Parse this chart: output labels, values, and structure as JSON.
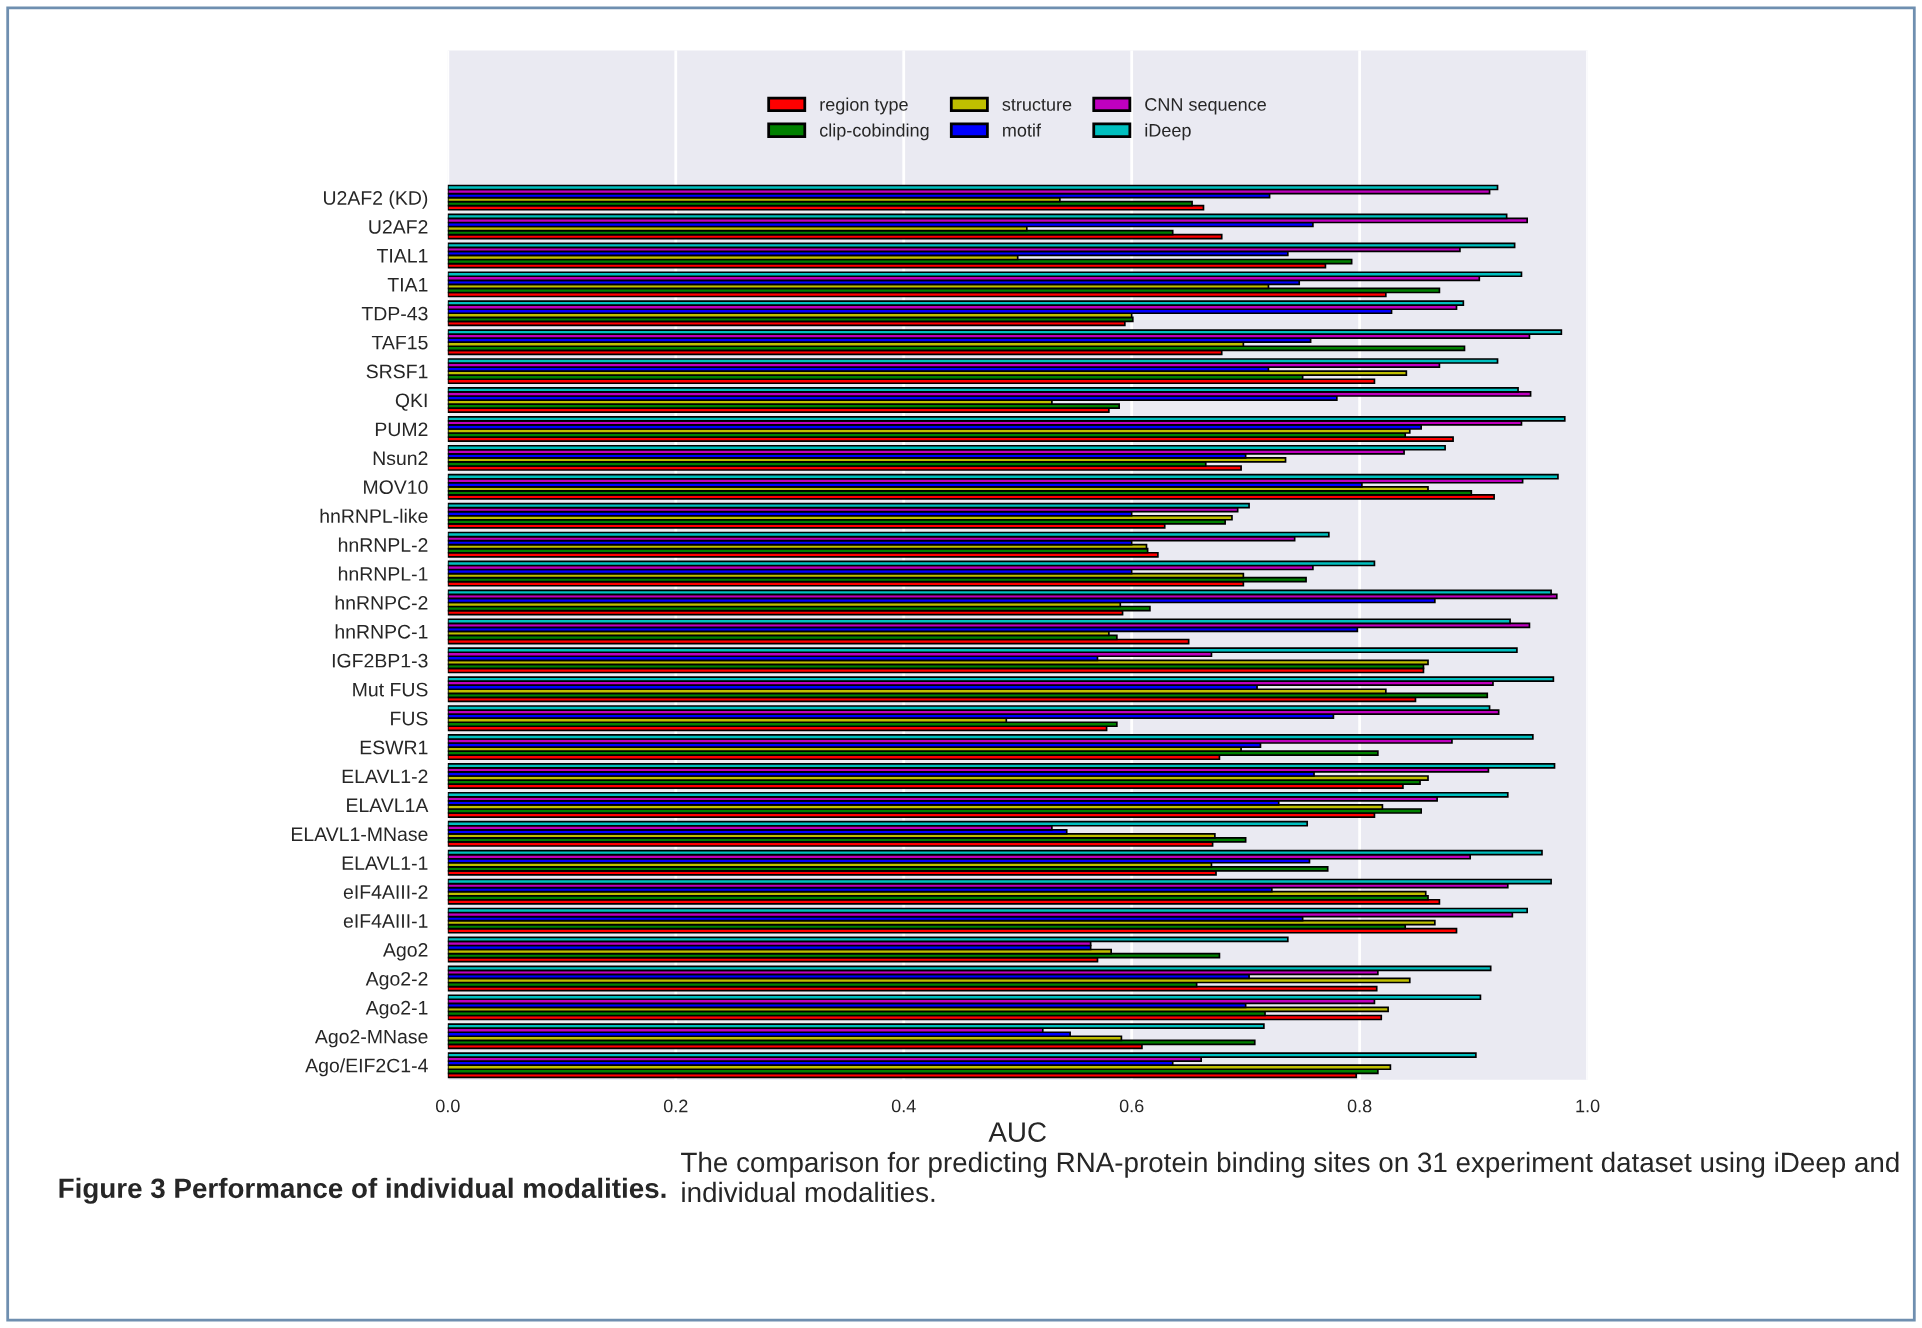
{
  "chart_data": {
    "type": "bar",
    "orientation": "horizontal",
    "xlabel": "AUC",
    "categories": [
      "U2AF2 (KD)",
      "U2AF2",
      "TIAL1",
      "TIA1",
      "TDP-43",
      "TAF15",
      "SRSF1",
      "QKI",
      "PUM2",
      "Nsun2",
      "MOV10",
      "hnRNPL-like",
      "hnRNPL-2",
      "hnRNPL-1",
      "hnRNPC-2",
      "hnRNPC-1",
      "IGF2BP1-3",
      "Mut FUS",
      "FUS",
      "ESWR1",
      "ELAVL1-2",
      "ELAVL1A",
      "ELAVL1-MNase",
      "ELAVL1-1",
      "eIF4AIII-2",
      "eIF4AIII-1",
      "Ago2",
      "Ago2-2",
      "Ago2-1",
      "Ago2-MNase",
      "Ago/EIF2C1-4"
    ],
    "series": [
      {
        "name": "region type",
        "color": "#ff0000",
        "values": [
          0.663,
          0.679,
          0.77,
          0.823,
          0.594,
          0.679,
          0.813,
          0.58,
          0.882,
          0.696,
          0.918,
          0.629,
          0.623,
          0.698,
          0.592,
          0.65,
          0.856,
          0.849,
          0.578,
          0.677,
          0.838,
          0.813,
          0.671,
          0.674,
          0.87,
          0.885,
          0.57,
          0.815,
          0.819,
          0.609,
          0.797
        ]
      },
      {
        "name": "clip-cobinding",
        "color": "#008000",
        "values": [
          0.653,
          0.636,
          0.793,
          0.87,
          0.601,
          0.892,
          0.75,
          0.589,
          0.84,
          0.665,
          0.898,
          0.682,
          0.614,
          0.753,
          0.616,
          0.587,
          0.856,
          0.912,
          0.587,
          0.816,
          0.853,
          0.854,
          0.7,
          0.772,
          0.86,
          0.84,
          0.677,
          0.657,
          0.717,
          0.708,
          0.816
        ]
      },
      {
        "name": "structure",
        "color": "#bfbf00",
        "values": [
          0.537,
          0.508,
          0.5,
          0.72,
          0.6,
          0.698,
          0.841,
          0.53,
          0.844,
          0.735,
          0.86,
          0.688,
          0.613,
          0.698,
          0.59,
          0.58,
          0.86,
          0.823,
          0.49,
          0.696,
          0.86,
          0.82,
          0.673,
          0.67,
          0.858,
          0.866,
          0.582,
          0.844,
          0.825,
          0.591,
          0.827
        ]
      },
      {
        "name": "motif",
        "color": "#0000ff",
        "values": [
          0.721,
          0.759,
          0.737,
          0.747,
          0.828,
          0.757,
          0.72,
          0.78,
          0.854,
          0.7,
          0.802,
          0.6,
          0.6,
          0.6,
          0.866,
          0.798,
          0.57,
          0.71,
          0.777,
          0.713,
          0.76,
          0.729,
          0.543,
          0.756,
          0.723,
          0.75,
          0.564,
          0.703,
          0.7,
          0.546,
          0.636
        ]
      },
      {
        "name": "CNN sequence",
        "color": "#bf00bf",
        "values": [
          0.914,
          0.947,
          0.888,
          0.905,
          0.885,
          0.949,
          0.87,
          0.95,
          0.942,
          0.839,
          0.943,
          0.693,
          0.743,
          0.759,
          0.973,
          0.949,
          0.67,
          0.917,
          0.922,
          0.881,
          0.913,
          0.868,
          0.53,
          0.897,
          0.93,
          0.934,
          0.564,
          0.816,
          0.813,
          0.522,
          0.661
        ]
      },
      {
        "name": "iDeep",
        "color": "#00bfbf",
        "values": [
          0.921,
          0.929,
          0.936,
          0.942,
          0.891,
          0.977,
          0.921,
          0.939,
          0.98,
          0.875,
          0.974,
          0.703,
          0.773,
          0.813,
          0.968,
          0.932,
          0.938,
          0.97,
          0.914,
          0.952,
          0.971,
          0.93,
          0.754,
          0.96,
          0.968,
          0.947,
          0.737,
          0.915,
          0.906,
          0.716,
          0.902
        ]
      }
    ],
    "xlim": [
      0,
      1
    ],
    "xticks": [
      {
        "value": 0,
        "label": "0.0"
      },
      {
        "value": 0.2,
        "label": "0.2"
      },
      {
        "value": 0.4,
        "label": "0.4"
      },
      {
        "value": 0.6,
        "label": "0.6"
      },
      {
        "value": 0.8,
        "label": "0.8"
      },
      {
        "value": 1,
        "label": "1.0"
      }
    ],
    "grid": "x",
    "legend": "top",
    "annotations": [
      "Figure 3 Performance of individual modalities.",
      "The comparison for predicting RNA-protein binding sites on 31 experiment dataset using iDeep and individual modalities."
    ]
  }
}
